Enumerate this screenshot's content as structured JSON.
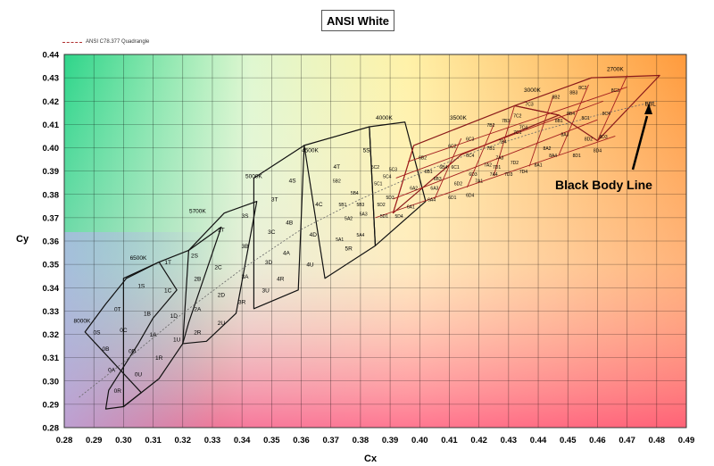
{
  "chart_data": {
    "type": "scatter",
    "title": "ANSI White",
    "xlabel": "Cx",
    "ylabel": "Cy",
    "xlim": [
      0.28,
      0.49
    ],
    "ylim": [
      0.28,
      0.44
    ],
    "grid": true,
    "legend_position": "top-left",
    "legend": [
      "ANSI C78.377 Quadrangle"
    ],
    "background": "color gradient",
    "x_ticks": [
      "0.28",
      "0.29",
      "0.30",
      "0.31",
      "0.32",
      "0.33",
      "0.34",
      "0.35",
      "0.36",
      "0.37",
      "0.38",
      "0.39",
      "0.40",
      "0.41",
      "0.42",
      "0.43",
      "0.44",
      "0.45",
      "0.46",
      "0.47",
      "0.48",
      "0.49"
    ],
    "y_ticks": [
      "0.28",
      "0.29",
      "0.30",
      "0.31",
      "0.32",
      "0.33",
      "0.34",
      "0.35",
      "0.36",
      "0.37",
      "0.38",
      "0.39",
      "0.40",
      "0.41",
      "0.42",
      "0.43",
      "0.44"
    ],
    "cct_labels": [
      {
        "text": "8000K",
        "x": 0.286,
        "y": 0.325
      },
      {
        "text": "6500K",
        "x": 0.305,
        "y": 0.352
      },
      {
        "text": "5700K",
        "x": 0.325,
        "y": 0.372
      },
      {
        "text": "5000K",
        "x": 0.344,
        "y": 0.387
      },
      {
        "text": "4500K",
        "x": 0.363,
        "y": 0.398
      },
      {
        "text": "4000K",
        "x": 0.388,
        "y": 0.412
      },
      {
        "text": "3500K",
        "x": 0.413,
        "y": 0.412
      },
      {
        "text": "3000K",
        "x": 0.438,
        "y": 0.424
      },
      {
        "text": "2700K",
        "x": 0.466,
        "y": 0.433
      }
    ],
    "quadrangles": [
      {
        "cct": "8000K",
        "corners": [
          [
            0.287,
            0.321
          ],
          [
            0.294,
            0.333
          ],
          [
            0.301,
            0.344
          ],
          [
            0.312,
            0.351
          ],
          [
            0.318,
            0.339
          ],
          [
            0.31,
            0.327
          ],
          [
            0.305,
            0.316
          ],
          [
            0.3,
            0.306
          ],
          [
            0.295,
            0.296
          ],
          [
            0.294,
            0.288
          ],
          [
            0.3,
            0.289
          ],
          [
            0.306,
            0.295
          ]
        ]
      },
      {
        "cct": "6500K",
        "corners": [
          [
            0.3,
            0.344
          ],
          [
            0.312,
            0.351
          ],
          [
            0.322,
            0.356
          ],
          [
            0.333,
            0.366
          ],
          [
            0.322,
            0.325
          ],
          [
            0.32,
            0.316
          ],
          [
            0.312,
            0.301
          ],
          [
            0.3,
            0.289
          ]
        ]
      },
      {
        "cct": "5700K",
        "corners": [
          [
            0.322,
            0.356
          ],
          [
            0.334,
            0.372
          ],
          [
            0.345,
            0.377
          ],
          [
            0.338,
            0.329
          ],
          [
            0.328,
            0.317
          ],
          [
            0.32,
            0.316
          ]
        ]
      },
      {
        "cct": "5000K",
        "corners": [
          [
            0.344,
            0.387
          ],
          [
            0.361,
            0.401
          ],
          [
            0.359,
            0.339
          ],
          [
            0.344,
            0.331
          ]
        ]
      },
      {
        "cct": "4500K",
        "corners": [
          [
            0.361,
            0.401
          ],
          [
            0.383,
            0.409
          ],
          [
            0.385,
            0.358
          ],
          [
            0.368,
            0.344
          ]
        ]
      },
      {
        "cct": "4000K",
        "corners": [
          [
            0.383,
            0.409
          ],
          [
            0.395,
            0.411
          ],
          [
            0.402,
            0.377
          ],
          [
            0.385,
            0.358
          ]
        ]
      },
      {
        "cct": "3500K",
        "corners": [
          [
            0.398,
            0.401
          ],
          [
            0.432,
            0.418
          ],
          [
            0.447,
            0.414
          ],
          [
            0.414,
            0.397
          ],
          [
            0.391,
            0.372
          ]
        ]
      },
      {
        "cct": "3000K",
        "corners": [
          [
            0.432,
            0.418
          ],
          [
            0.458,
            0.43
          ],
          [
            0.481,
            0.431
          ],
          [
            0.46,
            0.403
          ],
          [
            0.447,
            0.414
          ]
        ]
      }
    ],
    "bin_labels_primary": [
      {
        "text": "0S",
        "x": 0.291,
        "y": 0.32
      },
      {
        "text": "0T",
        "x": 0.298,
        "y": 0.33
      },
      {
        "text": "0B",
        "x": 0.294,
        "y": 0.313
      },
      {
        "text": "0C",
        "x": 0.3,
        "y": 0.321
      },
      {
        "text": "0A",
        "x": 0.296,
        "y": 0.304
      },
      {
        "text": "0D",
        "x": 0.303,
        "y": 0.312
      },
      {
        "text": "0R",
        "x": 0.298,
        "y": 0.295
      },
      {
        "text": "0U",
        "x": 0.305,
        "y": 0.302
      },
      {
        "text": "1S",
        "x": 0.306,
        "y": 0.34
      },
      {
        "text": "1T",
        "x": 0.315,
        "y": 0.35
      },
      {
        "text": "1C",
        "x": 0.315,
        "y": 0.338
      },
      {
        "text": "1B",
        "x": 0.308,
        "y": 0.328
      },
      {
        "text": "1D",
        "x": 0.317,
        "y": 0.327
      },
      {
        "text": "1A",
        "x": 0.31,
        "y": 0.319
      },
      {
        "text": "1U",
        "x": 0.318,
        "y": 0.317
      },
      {
        "text": "1R",
        "x": 0.312,
        "y": 0.309
      },
      {
        "text": "2T",
        "x": 0.333,
        "y": 0.364
      },
      {
        "text": "2S",
        "x": 0.324,
        "y": 0.353
      },
      {
        "text": "2C",
        "x": 0.332,
        "y": 0.348
      },
      {
        "text": "2B",
        "x": 0.325,
        "y": 0.343
      },
      {
        "text": "2D",
        "x": 0.333,
        "y": 0.336
      },
      {
        "text": "2A",
        "x": 0.325,
        "y": 0.33
      },
      {
        "text": "2U",
        "x": 0.333,
        "y": 0.324
      },
      {
        "text": "2R",
        "x": 0.325,
        "y": 0.32
      },
      {
        "text": "3S",
        "x": 0.341,
        "y": 0.37
      },
      {
        "text": "3T",
        "x": 0.351,
        "y": 0.377
      },
      {
        "text": "3C",
        "x": 0.35,
        "y": 0.363
      },
      {
        "text": "3B",
        "x": 0.341,
        "y": 0.357
      },
      {
        "text": "3A",
        "x": 0.341,
        "y": 0.344
      },
      {
        "text": "3D",
        "x": 0.349,
        "y": 0.35
      },
      {
        "text": "3R",
        "x": 0.34,
        "y": 0.333
      },
      {
        "text": "3U",
        "x": 0.348,
        "y": 0.338
      },
      {
        "text": "4S",
        "x": 0.357,
        "y": 0.385
      },
      {
        "text": "4T",
        "x": 0.372,
        "y": 0.391
      },
      {
        "text": "4C",
        "x": 0.366,
        "y": 0.375
      },
      {
        "text": "4B",
        "x": 0.356,
        "y": 0.367
      },
      {
        "text": "4D",
        "x": 0.364,
        "y": 0.362
      },
      {
        "text": "4A",
        "x": 0.355,
        "y": 0.354
      },
      {
        "text": "4U",
        "x": 0.363,
        "y": 0.349
      },
      {
        "text": "4R",
        "x": 0.353,
        "y": 0.343
      },
      {
        "text": "5S",
        "x": 0.382,
        "y": 0.398
      },
      {
        "text": "5R",
        "x": 0.376,
        "y": 0.356
      }
    ],
    "bin_labels_secondary": [
      {
        "text": "5B2",
        "x": 0.372,
        "y": 0.385
      },
      {
        "text": "5C2",
        "x": 0.385,
        "y": 0.391
      },
      {
        "text": "5B1",
        "x": 0.374,
        "y": 0.375
      },
      {
        "text": "5C1",
        "x": 0.386,
        "y": 0.384
      },
      {
        "text": "5A2",
        "x": 0.376,
        "y": 0.369
      },
      {
        "text": "5D2",
        "x": 0.387,
        "y": 0.375
      },
      {
        "text": "5A1",
        "x": 0.373,
        "y": 0.36
      },
      {
        "text": "5D1",
        "x": 0.388,
        "y": 0.37
      },
      {
        "text": "5B4",
        "x": 0.378,
        "y": 0.38
      },
      {
        "text": "5C4",
        "x": 0.389,
        "y": 0.387
      },
      {
        "text": "5B3",
        "x": 0.38,
        "y": 0.375
      },
      {
        "text": "5C3",
        "x": 0.391,
        "y": 0.39
      },
      {
        "text": "5A4",
        "x": 0.38,
        "y": 0.362
      },
      {
        "text": "5D4",
        "x": 0.393,
        "y": 0.37
      },
      {
        "text": "5A3",
        "x": 0.381,
        "y": 0.371
      },
      {
        "text": "5D3",
        "x": 0.39,
        "y": 0.378
      },
      {
        "text": "6B2",
        "x": 0.401,
        "y": 0.395
      },
      {
        "text": "6C2",
        "x": 0.411,
        "y": 0.4
      },
      {
        "text": "6B1",
        "x": 0.403,
        "y": 0.389
      },
      {
        "text": "6C1",
        "x": 0.412,
        "y": 0.391
      },
      {
        "text": "6A2",
        "x": 0.398,
        "y": 0.382
      },
      {
        "text": "6D2",
        "x": 0.413,
        "y": 0.384
      },
      {
        "text": "6A1",
        "x": 0.397,
        "y": 0.374
      },
      {
        "text": "6D1",
        "x": 0.411,
        "y": 0.378
      },
      {
        "text": "6B4",
        "x": 0.408,
        "y": 0.391
      },
      {
        "text": "6C4",
        "x": 0.417,
        "y": 0.396
      },
      {
        "text": "6B3",
        "x": 0.406,
        "y": 0.386
      },
      {
        "text": "6C3",
        "x": 0.417,
        "y": 0.403
      },
      {
        "text": "6A4",
        "x": 0.404,
        "y": 0.377
      },
      {
        "text": "6D4",
        "x": 0.417,
        "y": 0.379
      },
      {
        "text": "6A3",
        "x": 0.405,
        "y": 0.382
      },
      {
        "text": "6D3",
        "x": 0.418,
        "y": 0.388
      },
      {
        "text": "7B2",
        "x": 0.424,
        "y": 0.409
      },
      {
        "text": "7C2",
        "x": 0.433,
        "y": 0.413
      },
      {
        "text": "7B1",
        "x": 0.424,
        "y": 0.399
      },
      {
        "text": "7C1",
        "x": 0.433,
        "y": 0.406
      },
      {
        "text": "7A2",
        "x": 0.423,
        "y": 0.392
      },
      {
        "text": "7D2",
        "x": 0.432,
        "y": 0.393
      },
      {
        "text": "7A1",
        "x": 0.42,
        "y": 0.385
      },
      {
        "text": "7D1",
        "x": 0.426,
        "y": 0.391
      },
      {
        "text": "7B4",
        "x": 0.428,
        "y": 0.402
      },
      {
        "text": "7C4",
        "x": 0.435,
        "y": 0.408
      },
      {
        "text": "7B3",
        "x": 0.429,
        "y": 0.411
      },
      {
        "text": "7C3",
        "x": 0.437,
        "y": 0.418
      },
      {
        "text": "7A4",
        "x": 0.425,
        "y": 0.388
      },
      {
        "text": "7D4",
        "x": 0.435,
        "y": 0.389
      },
      {
        "text": "7A3",
        "x": 0.427,
        "y": 0.395
      },
      {
        "text": "7D3",
        "x": 0.43,
        "y": 0.388
      },
      {
        "text": "8B2",
        "x": 0.446,
        "y": 0.421
      },
      {
        "text": "8C2",
        "x": 0.455,
        "y": 0.425
      },
      {
        "text": "8B1",
        "x": 0.447,
        "y": 0.411
      },
      {
        "text": "8C1",
        "x": 0.456,
        "y": 0.412
      },
      {
        "text": "8A2",
        "x": 0.443,
        "y": 0.399
      },
      {
        "text": "8D2",
        "x": 0.457,
        "y": 0.403
      },
      {
        "text": "8A1",
        "x": 0.44,
        "y": 0.392
      },
      {
        "text": "8D1",
        "x": 0.453,
        "y": 0.396
      },
      {
        "text": "8B4",
        "x": 0.451,
        "y": 0.414
      },
      {
        "text": "8C4",
        "x": 0.463,
        "y": 0.414
      },
      {
        "text": "8B3",
        "x": 0.452,
        "y": 0.423
      },
      {
        "text": "8C3",
        "x": 0.466,
        "y": 0.424
      },
      {
        "text": "8A4",
        "x": 0.445,
        "y": 0.396
      },
      {
        "text": "8D4",
        "x": 0.46,
        "y": 0.398
      },
      {
        "text": "8A3",
        "x": 0.449,
        "y": 0.405
      },
      {
        "text": "8D3",
        "x": 0.462,
        "y": 0.404
      }
    ],
    "black_body_line": {
      "label": "BBL",
      "points": [
        [
          0.285,
          0.293
        ],
        [
          0.3,
          0.308
        ],
        [
          0.32,
          0.329
        ],
        [
          0.34,
          0.348
        ],
        [
          0.36,
          0.365
        ],
        [
          0.38,
          0.378
        ],
        [
          0.4,
          0.389
        ],
        [
          0.42,
          0.399
        ],
        [
          0.44,
          0.407
        ],
        [
          0.46,
          0.414
        ],
        [
          0.48,
          0.42
        ]
      ]
    },
    "annotation": "Black Body Line"
  }
}
